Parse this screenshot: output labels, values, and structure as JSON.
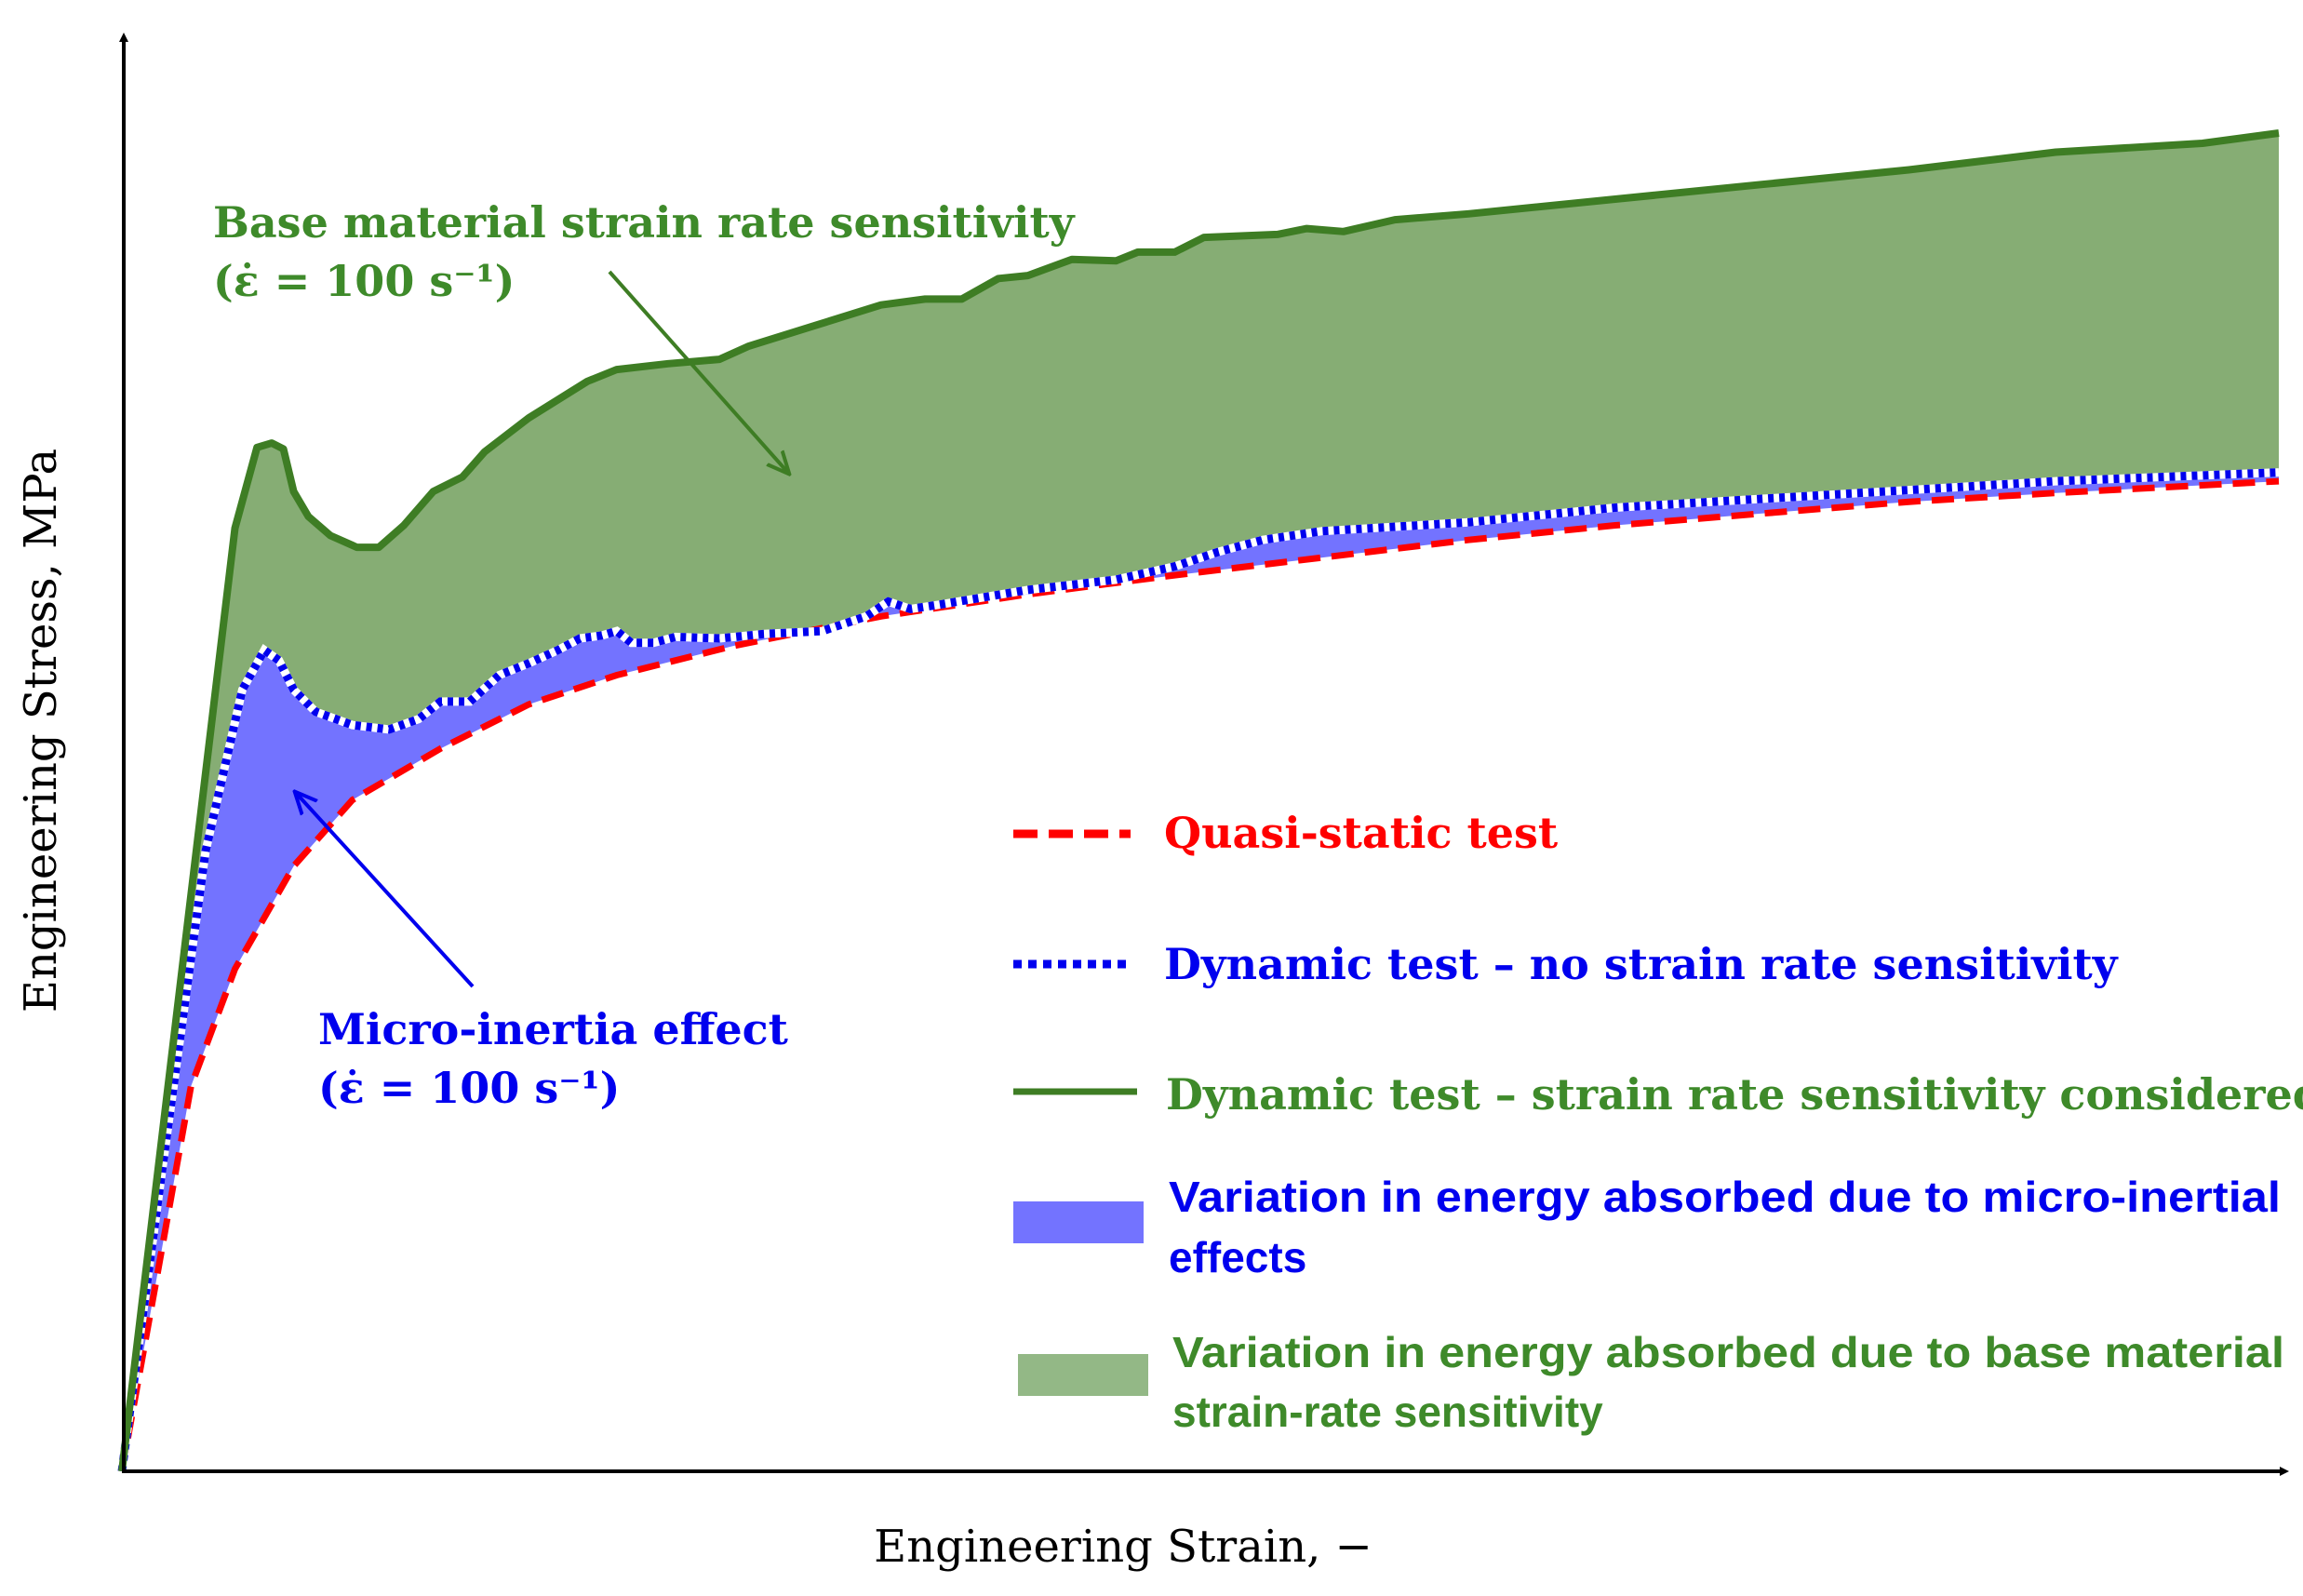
{
  "chart_data": {
    "type": "line",
    "title": "",
    "xlabel": "Engineering Strain, −",
    "ylabel": "Engineering Stress, MPa",
    "xlim": [
      0,
      1469
    ],
    "ylim": [
      0,
      911
    ],
    "units_note": "arbitrary units (axes carry no ticks)",
    "grid": false,
    "legend_position": "bottom-right",
    "colors": {
      "red": "#ff0000",
      "blue": "#0000ee",
      "green_line": "#3e7d24",
      "blue_fill": "#7373ff",
      "green_fill": "#86ad74",
      "green_text": "#3e8a2a"
    },
    "series": [
      {
        "name": "Quasi-static test",
        "style": "dashed",
        "color": "#ff0000",
        "points": [
          [
            0,
            0
          ],
          [
            22,
            122
          ],
          [
            47,
            262
          ],
          [
            77,
            342
          ],
          [
            117,
            412
          ],
          [
            157,
            457
          ],
          [
            217,
            492
          ],
          [
            277,
            522
          ],
          [
            337,
            542
          ],
          [
            417,
            562
          ],
          [
            517,
            582
          ],
          [
            617,
            597
          ],
          [
            717,
            610
          ],
          [
            817,
            622
          ],
          [
            917,
            634
          ],
          [
            1017,
            644
          ],
          [
            1117,
            652
          ],
          [
            1217,
            660
          ],
          [
            1317,
            666
          ],
          [
            1469,
            674
          ]
        ]
      },
      {
        "name": "Dynamic test – no strain rate sensitivity",
        "style": "dotted",
        "color": "#0000ee",
        "points": [
          [
            0,
            0
          ],
          [
            27,
            202
          ],
          [
            57,
            422
          ],
          [
            82,
            532
          ],
          [
            97,
            559
          ],
          [
            107,
            552
          ],
          [
            117,
            532
          ],
          [
            132,
            517
          ],
          [
            157,
            508
          ],
          [
            182,
            505
          ],
          [
            202,
            512
          ],
          [
            217,
            524
          ],
          [
            237,
            524
          ],
          [
            257,
            542
          ],
          [
            277,
            550
          ],
          [
            297,
            559
          ],
          [
            312,
            567
          ],
          [
            327,
            569
          ],
          [
            337,
            572
          ],
          [
            347,
            564
          ],
          [
            362,
            564
          ],
          [
            377,
            568
          ],
          [
            407,
            567
          ],
          [
            437,
            570
          ],
          [
            477,
            572
          ],
          [
            507,
            582
          ],
          [
            522,
            592
          ],
          [
            537,
            587
          ],
          [
            557,
            590
          ],
          [
            617,
            600
          ],
          [
            677,
            607
          ],
          [
            717,
            616
          ],
          [
            747,
            626
          ],
          [
            777,
            634
          ],
          [
            817,
            640
          ],
          [
            917,
            646
          ],
          [
            1017,
            656
          ],
          [
            1117,
            662
          ],
          [
            1217,
            668
          ],
          [
            1317,
            674
          ],
          [
            1469,
            680
          ]
        ]
      },
      {
        "name": "Dynamic test – strain rate sensitivity considered",
        "style": "solid",
        "color": "#3e7d24",
        "points": [
          [
            0,
            0
          ],
          [
            77,
            642
          ],
          [
            92,
            697
          ],
          [
            102,
            700
          ],
          [
            110,
            696
          ],
          [
            117,
            667
          ],
          [
            127,
            650
          ],
          [
            142,
            637
          ],
          [
            160,
            629
          ],
          [
            175,
            629
          ],
          [
            192,
            644
          ],
          [
            212,
            667
          ],
          [
            232,
            677
          ],
          [
            247,
            694
          ],
          [
            277,
            717
          ],
          [
            317,
            742
          ],
          [
            337,
            750
          ],
          [
            372,
            754
          ],
          [
            407,
            757
          ],
          [
            427,
            766
          ],
          [
            472,
            780
          ],
          [
            517,
            794
          ],
          [
            547,
            798
          ],
          [
            572,
            798
          ],
          [
            597,
            812
          ],
          [
            617,
            814
          ],
          [
            647,
            825
          ],
          [
            677,
            824
          ],
          [
            692,
            830
          ],
          [
            717,
            830
          ],
          [
            737,
            840
          ],
          [
            787,
            842
          ],
          [
            807,
            846
          ],
          [
            832,
            844
          ],
          [
            867,
            852
          ],
          [
            917,
            856
          ],
          [
            1017,
            866
          ],
          [
            1117,
            876
          ],
          [
            1217,
            886
          ],
          [
            1317,
            898
          ],
          [
            1417,
            904
          ],
          [
            1469,
            911
          ]
        ]
      }
    ],
    "legend": [
      {
        "label": "Quasi-static test",
        "kind": "dashed",
        "color": "#ff0000"
      },
      {
        "label": "Dynamic test – no strain rate sensitivity",
        "kind": "dotted",
        "color": "#0000ee"
      },
      {
        "label": "Dynamic test – strain rate sensitivity considered",
        "kind": "solid",
        "color": "#3e7d24"
      },
      {
        "label_line1": "Variation in energy absorbed due to micro-inertial",
        "label_line2": "effects",
        "kind": "fill",
        "color": "#7373ff"
      },
      {
        "label_line1": "Variation in energy absorbed due to base material",
        "label_line2": "strain-rate sensitivity",
        "kind": "fill",
        "color": "#86ad74"
      }
    ],
    "annotations": {
      "base_material": {
        "line1": "Base material strain rate sensitivity",
        "line2": "(ε̇ = 100 s⁻¹)"
      },
      "micro_inertia": {
        "line1": "Micro-inertia effect",
        "line2": "(ε̇ = 100 s⁻¹)"
      }
    }
  }
}
